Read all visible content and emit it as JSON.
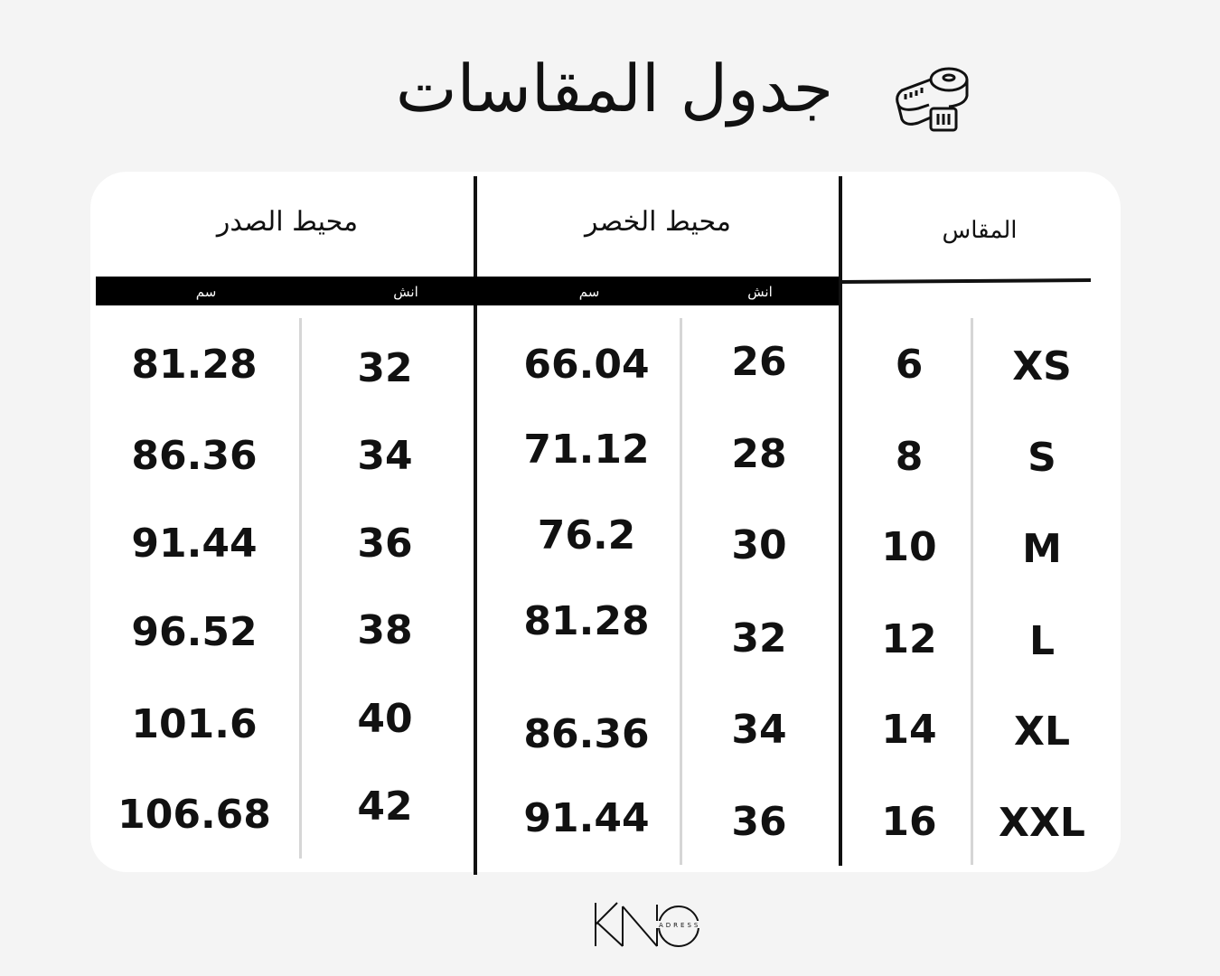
{
  "title": "جدول المقاسات",
  "icon": "tape-measure-icon",
  "headers": {
    "chest": "محيط الصدر",
    "waist": "محيط الخصر",
    "size": "المقاس"
  },
  "units": {
    "cm": "سم",
    "inch": "انش"
  },
  "columns": {
    "chest_cm": [
      "81.28",
      "86.36",
      "91.44",
      "96.52",
      "101.6",
      "106.68"
    ],
    "chest_in": [
      "32",
      "34",
      "36",
      "38",
      "40",
      "42"
    ],
    "waist_cm": [
      "66.04",
      "71.12",
      "76.2",
      "81.28",
      "86.36",
      "91.44"
    ],
    "waist_in": [
      "26",
      "28",
      "30",
      "32",
      "34",
      "36"
    ],
    "size_num": [
      "6",
      "8",
      "10",
      "12",
      "14",
      "16"
    ],
    "size_letter": [
      "XS",
      "S",
      "M",
      "L",
      "XL",
      "XXL"
    ]
  },
  "logo": {
    "text": "KNO",
    "sub": "ADRESS"
  }
}
